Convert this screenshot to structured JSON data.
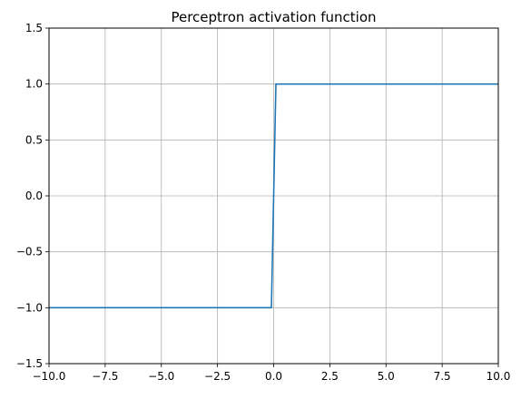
{
  "chart_data": {
    "type": "line",
    "title": "Perceptron activation function",
    "xlabel": "",
    "ylabel": "",
    "xlim": [
      -10,
      10
    ],
    "ylim": [
      -1.5,
      1.5
    ],
    "grid": true,
    "x_ticks": [
      -10,
      -7.5,
      -5,
      -2.5,
      0,
      2.5,
      5,
      7.5,
      10
    ],
    "x_tick_labels": [
      "−10.0",
      "−7.5",
      "−5.0",
      "−2.5",
      "0.0",
      "2.5",
      "5.0",
      "7.5",
      "10.0"
    ],
    "y_ticks": [
      -1.5,
      -1,
      -0.5,
      0,
      0.5,
      1,
      1.5
    ],
    "y_tick_labels": [
      "−1.5",
      "−1.0",
      "−0.5",
      "0.0",
      "0.5",
      "1.0",
      "1.5"
    ],
    "series": [
      {
        "color": "#1f77b4",
        "x": [
          -10,
          -0.1,
          0.1,
          10
        ],
        "y": [
          -1,
          -1,
          1,
          1
        ]
      }
    ]
  }
}
